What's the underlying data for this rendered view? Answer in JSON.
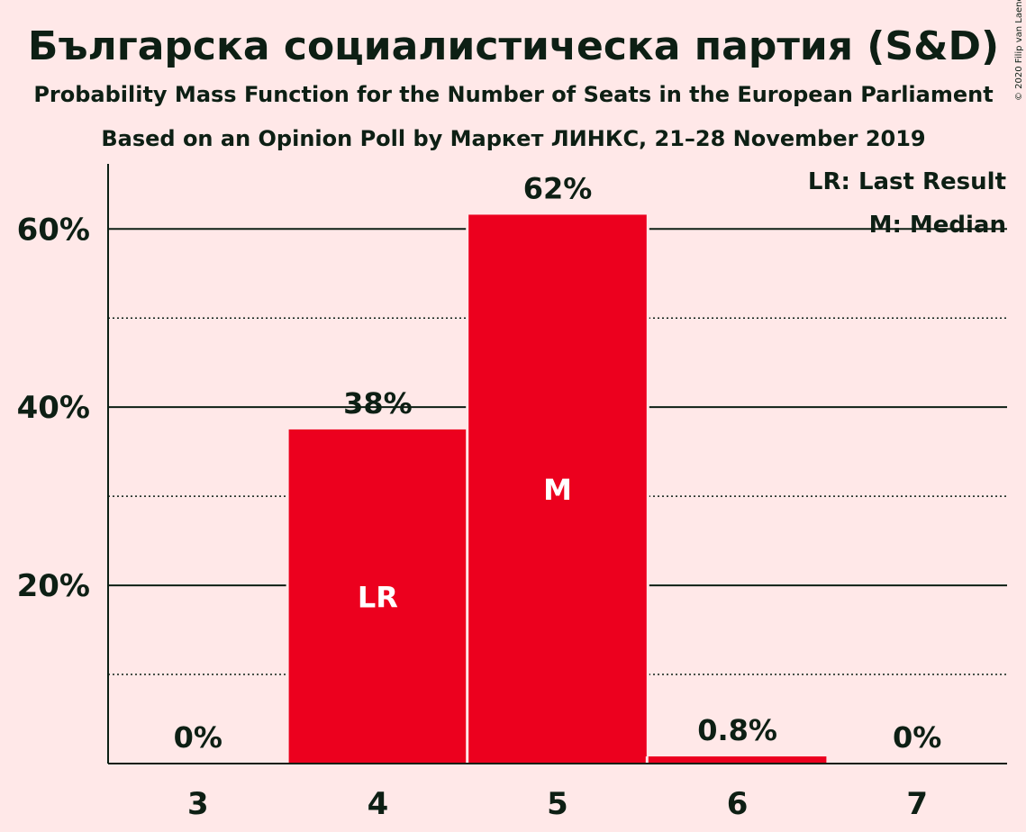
{
  "chart_data": {
    "type": "bar",
    "title": "Българска социалистическа партия (S&D)",
    "subtitle": "Probability Mass Function for the Number of Seats in the European Parliament",
    "subtitle2": "Based on an Opinion Poll by Маркет ЛИНКС, 21–28 November 2019",
    "copyright": "© 2020 Filip van Laenen",
    "categories": [
      "3",
      "4",
      "5",
      "6",
      "7"
    ],
    "values": [
      0,
      37.5,
      61.6,
      0.8,
      0
    ],
    "value_labels": [
      "0%",
      "38%",
      "62%",
      "0.8%",
      "0%"
    ],
    "bar_markers": [
      "",
      "LR",
      "M",
      "",
      ""
    ],
    "y_ticks": [
      20,
      40,
      60
    ],
    "y_tick_labels": [
      "20%",
      "40%",
      "60%"
    ],
    "y_minor_ticks": [
      10,
      30,
      50
    ],
    "ylim": [
      0,
      67
    ],
    "legend": {
      "placement": "top-right",
      "items": [
        "LR: Last Result",
        "M: Median"
      ]
    },
    "colors": {
      "bar": "#EC001E",
      "background": "#FFE8E8",
      "text": "#0D1F14"
    }
  }
}
